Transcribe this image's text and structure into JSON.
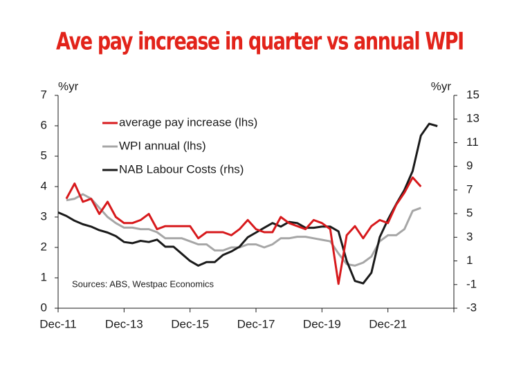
{
  "chart_data": {
    "type": "line",
    "title": "Ave pay increase in quarter vs annual WPI",
    "y_label": "%yr",
    "y2_label": "%yr",
    "source": "Sources: ABS, Westpac Economics",
    "categories": [
      "Dec-11",
      null,
      null,
      null,
      null,
      null,
      null,
      null,
      "Dec-13",
      null,
      null,
      null,
      null,
      null,
      null,
      null,
      "Dec-15",
      null,
      null,
      null,
      null,
      null,
      null,
      null,
      "Dec-17",
      null,
      null,
      null,
      null,
      null,
      null,
      null,
      "Dec-19",
      null,
      null,
      null,
      null,
      null,
      null,
      null,
      "Dec-21",
      null,
      null,
      null,
      null,
      null,
      null,
      null,
      null
    ],
    "ylim": [
      0,
      7
    ],
    "yticks": [
      0,
      1,
      2,
      3,
      4,
      5,
      6,
      7
    ],
    "y2lim": [
      -3,
      15
    ],
    "y2ticks": [
      -3,
      -1,
      1,
      3,
      5,
      7,
      9,
      11,
      13,
      15
    ],
    "legend": "upper left",
    "series": [
      {
        "name": "average pay increase (lhs)",
        "color": "#d7191c",
        "values": [
          null,
          3.6,
          4.1,
          3.5,
          3.6,
          3.1,
          3.5,
          3.0,
          2.8,
          2.8,
          2.9,
          3.1,
          2.6,
          2.7,
          2.7,
          2.7,
          2.7,
          2.3,
          2.5,
          2.5,
          2.5,
          2.4,
          2.6,
          2.9,
          2.6,
          2.5,
          2.5,
          3.0,
          2.8,
          2.7,
          2.6,
          2.9,
          2.8,
          2.6,
          0.8,
          2.4,
          2.7,
          2.3,
          2.7,
          2.9,
          2.8,
          3.4,
          3.8,
          4.3,
          4.0,
          null,
          null,
          null,
          null
        ]
      },
      {
        "name": "WPI annual (lhs)",
        "color": "#a6a6a6",
        "values": [
          null,
          3.55,
          3.6,
          3.75,
          3.6,
          3.3,
          3.0,
          2.8,
          2.65,
          2.65,
          2.6,
          2.6,
          2.5,
          2.3,
          2.3,
          2.3,
          2.2,
          2.1,
          2.1,
          1.9,
          1.9,
          2.0,
          2.0,
          2.1,
          2.1,
          2.0,
          2.1,
          2.3,
          2.3,
          2.35,
          2.35,
          2.3,
          2.25,
          2.2,
          1.8,
          1.45,
          1.4,
          1.5,
          1.7,
          2.2,
          2.4,
          2.4,
          2.6,
          3.2,
          3.3,
          null,
          null,
          null,
          null
        ]
      },
      {
        "name": "NAB Labour Costs (rhs)",
        "color": "#1a1a1a",
        "axis": "y2",
        "values": [
          5.1,
          4.8,
          4.4,
          4.1,
          3.9,
          3.6,
          3.4,
          3.1,
          2.6,
          2.5,
          2.7,
          2.6,
          2.8,
          2.2,
          2.2,
          1.6,
          1.0,
          0.6,
          0.9,
          0.9,
          1.5,
          1.8,
          2.2,
          3.0,
          3.4,
          3.8,
          4.2,
          3.9,
          4.3,
          4.2,
          3.8,
          3.8,
          3.9,
          3.9,
          3.5,
          1.0,
          -0.7,
          -0.9,
          0.0,
          3.0,
          4.5,
          5.8,
          7.0,
          8.6,
          11.6,
          12.6,
          12.4,
          null,
          null
        ]
      }
    ]
  }
}
